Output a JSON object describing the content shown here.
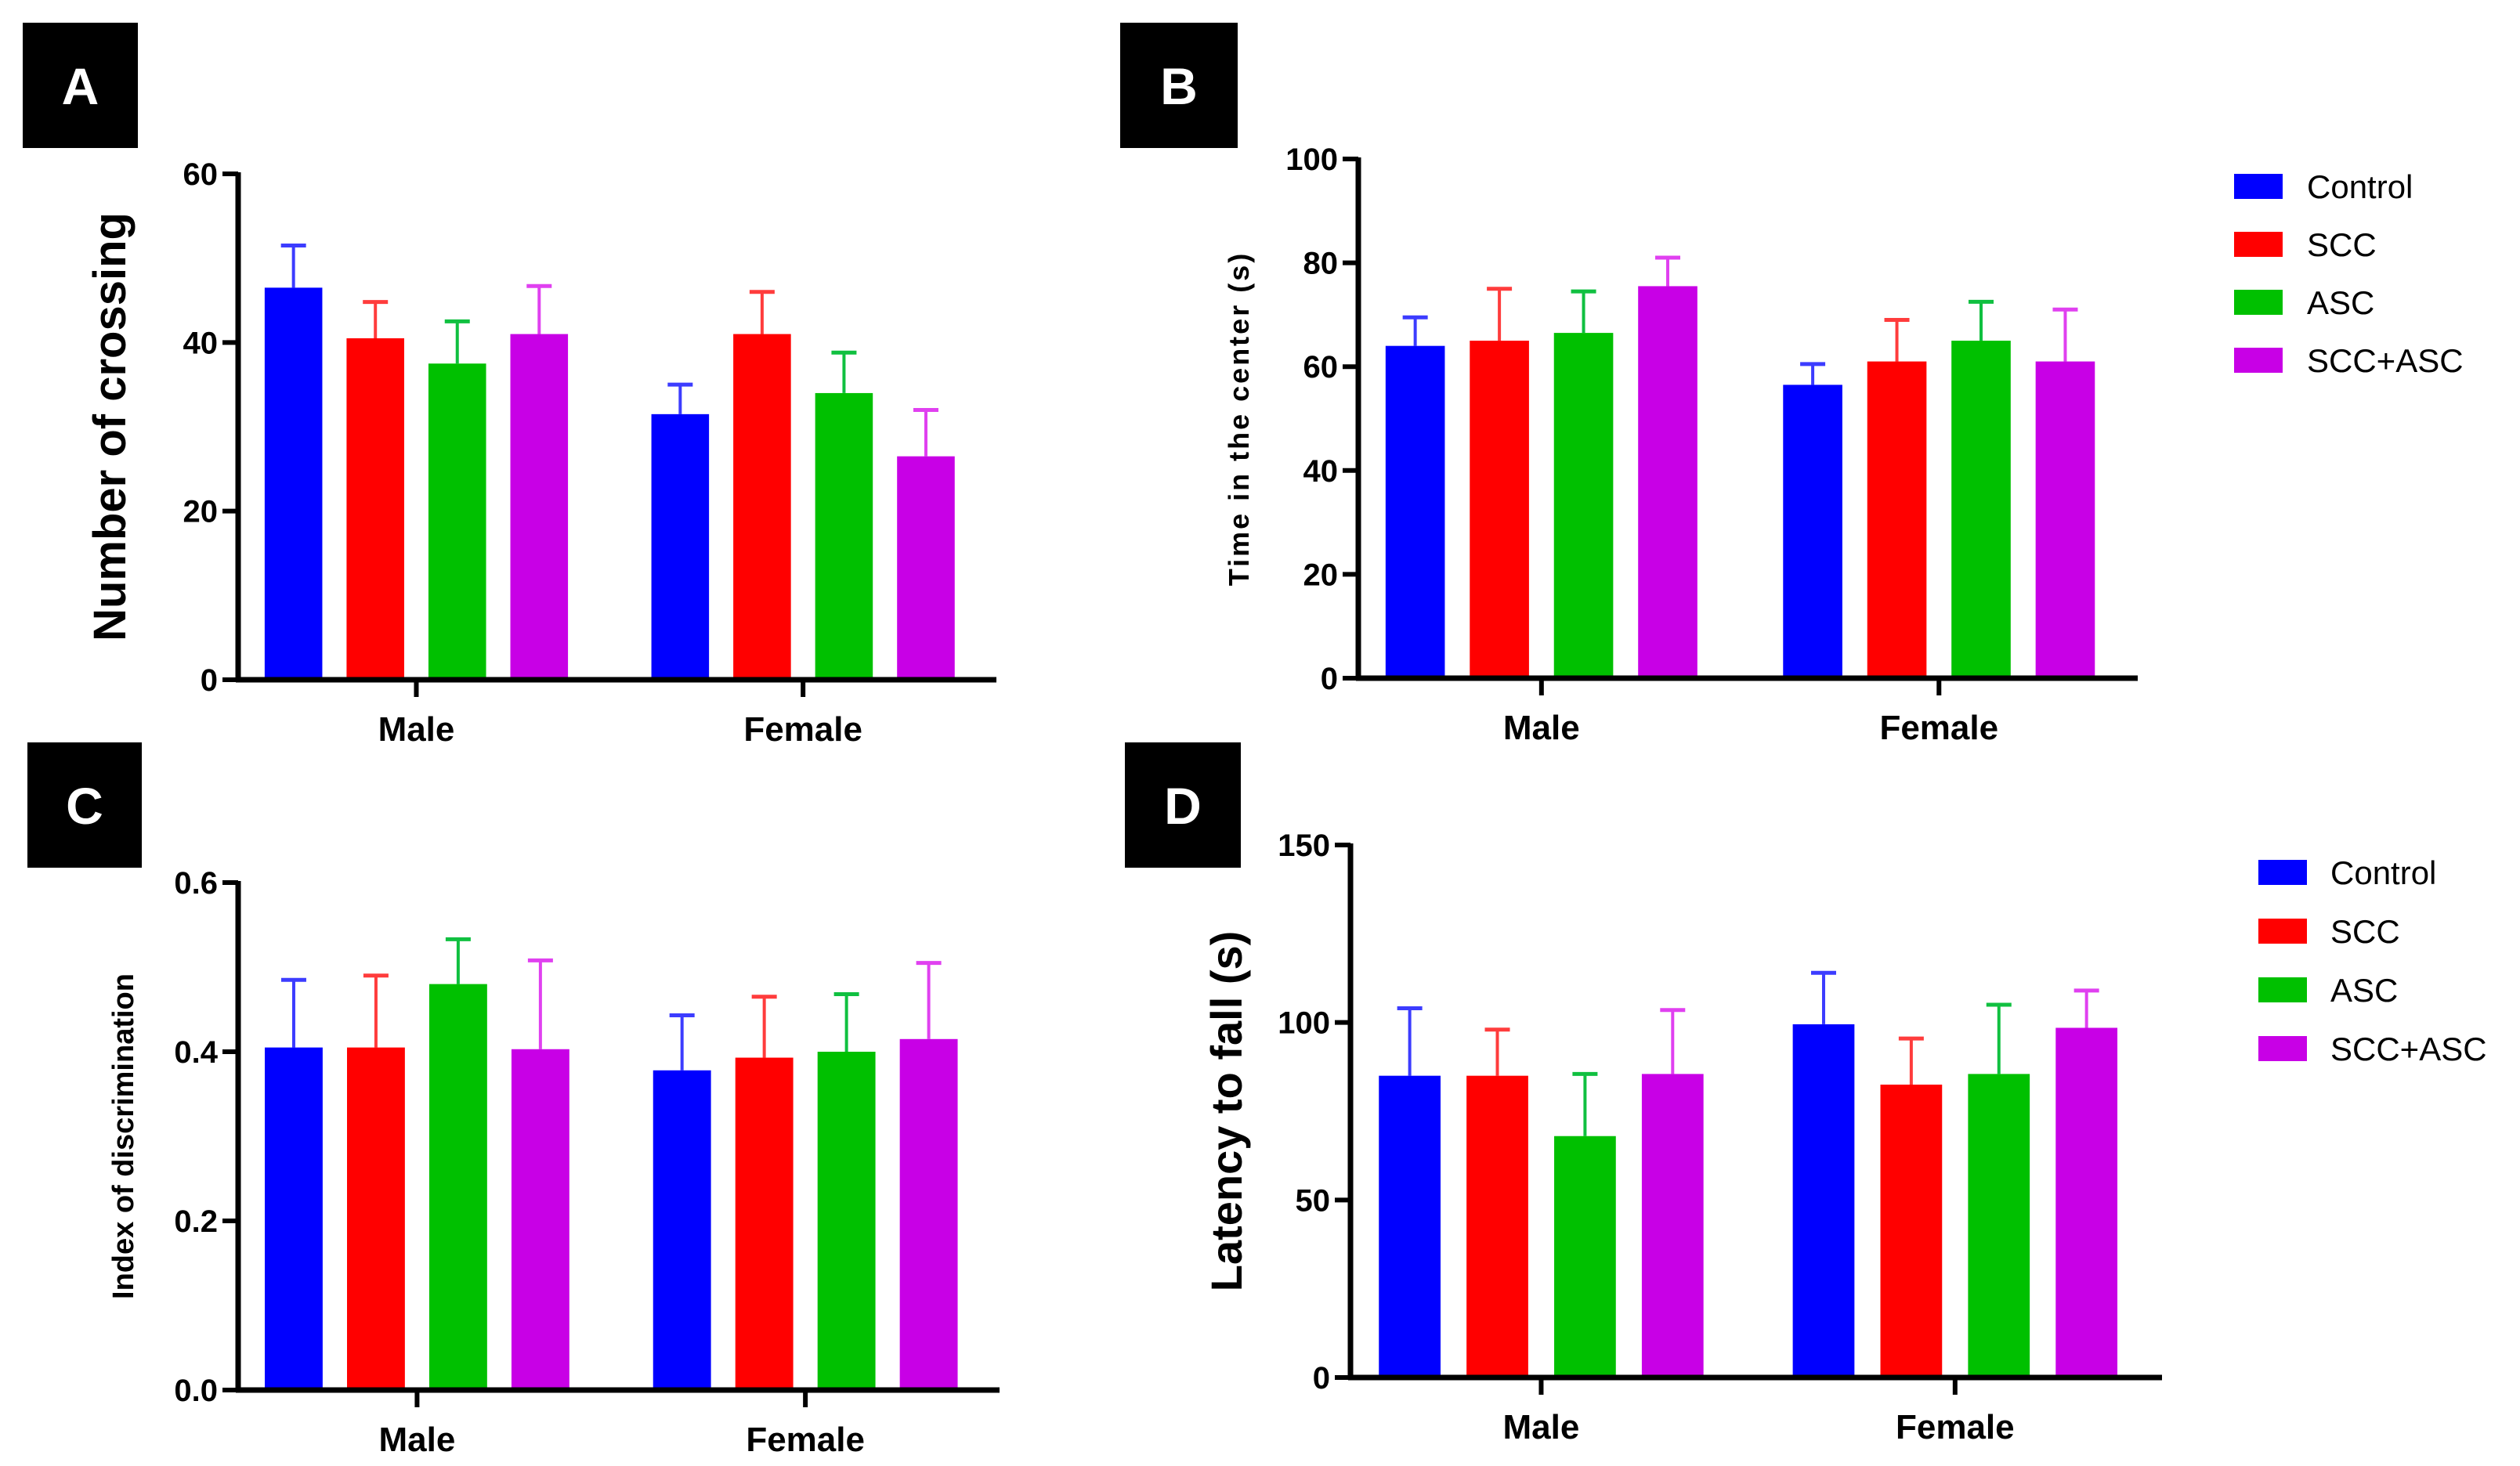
{
  "groups": [
    "Control",
    "SCC",
    "ASC",
    "SCC+ASC"
  ],
  "colors": {
    "Control": "#0000ff",
    "SCC": "#ff0000",
    "ASC": "#00c000",
    "SCC+ASC": "#c800e6"
  },
  "error_colors": {
    "Control": "#3c3cff",
    "SCC": "#ff3c3c",
    "ASC": "#10c040",
    "SCC+ASC": "#e040f0"
  },
  "chart_data": [
    {
      "panel": "A",
      "type": "bar",
      "categories": [
        "Male",
        "Female"
      ],
      "ylabel": "Number of crossing",
      "ylim": [
        0,
        60
      ],
      "yticks": [
        0,
        20,
        40,
        60
      ],
      "ytick_labels": [
        "0",
        "20",
        "40",
        "60"
      ],
      "legend": false,
      "series": [
        {
          "name": "Control",
          "values": [
            46.5,
            31.5
          ],
          "errors": [
            5.0,
            3.5
          ]
        },
        {
          "name": "SCC",
          "values": [
            40.5,
            41.0
          ],
          "errors": [
            4.3,
            5.0
          ]
        },
        {
          "name": "ASC",
          "values": [
            37.5,
            34.0
          ],
          "errors": [
            5.0,
            4.8
          ]
        },
        {
          "name": "SCC+ASC",
          "values": [
            41.0,
            26.5
          ],
          "errors": [
            5.7,
            5.5
          ]
        }
      ]
    },
    {
      "panel": "B",
      "type": "bar",
      "categories": [
        "Male",
        "Female"
      ],
      "ylabel": "Time in the center (s)",
      "ylim": [
        0,
        100
      ],
      "yticks": [
        0,
        20,
        40,
        60,
        80,
        100
      ],
      "ytick_labels": [
        "0",
        "20",
        "40",
        "60",
        "80",
        "100"
      ],
      "legend": true,
      "legend_position": "right",
      "series": [
        {
          "name": "Control",
          "values": [
            64.0,
            56.5
          ],
          "errors": [
            5.5,
            4.0
          ]
        },
        {
          "name": "SCC",
          "values": [
            65.0,
            61.0
          ],
          "errors": [
            10.0,
            8.0
          ]
        },
        {
          "name": "ASC",
          "values": [
            66.5,
            65.0
          ],
          "errors": [
            8.0,
            7.5
          ]
        },
        {
          "name": "SCC+ASC",
          "values": [
            75.5,
            61.0
          ],
          "errors": [
            5.5,
            10.0
          ]
        }
      ]
    },
    {
      "panel": "C",
      "type": "bar",
      "categories": [
        "Male",
        "Female"
      ],
      "ylabel": "Index of discrimination",
      "ylim": [
        0,
        0.6
      ],
      "yticks": [
        0,
        0.2,
        0.4,
        0.6
      ],
      "ytick_labels": [
        "0.0",
        "0.2",
        "0.4",
        "0.6"
      ],
      "legend": false,
      "series": [
        {
          "name": "Control",
          "values": [
            0.405,
            0.378
          ],
          "errors": [
            0.08,
            0.065
          ]
        },
        {
          "name": "SCC",
          "values": [
            0.405,
            0.393
          ],
          "errors": [
            0.085,
            0.072
          ]
        },
        {
          "name": "ASC",
          "values": [
            0.48,
            0.4
          ],
          "errors": [
            0.053,
            0.068
          ]
        },
        {
          "name": "SCC+ASC",
          "values": [
            0.403,
            0.415
          ],
          "errors": [
            0.105,
            0.09
          ]
        }
      ]
    },
    {
      "panel": "D",
      "type": "bar",
      "categories": [
        "Male",
        "Female"
      ],
      "ylabel": "Latency to fall (s)",
      "ylim": [
        0,
        150
      ],
      "yticks": [
        0,
        50,
        100,
        150
      ],
      "ytick_labels": [
        "0",
        "50",
        "100",
        "150"
      ],
      "legend": true,
      "legend_position": "right",
      "series": [
        {
          "name": "Control",
          "values": [
            85.0,
            99.5
          ],
          "errors": [
            19.0,
            14.5
          ]
        },
        {
          "name": "SCC",
          "values": [
            85.0,
            82.5
          ],
          "errors": [
            13.0,
            13.0
          ]
        },
        {
          "name": "ASC",
          "values": [
            68.0,
            85.5
          ],
          "errors": [
            17.5,
            19.5
          ]
        },
        {
          "name": "SCC+ASC",
          "values": [
            85.5,
            98.5
          ],
          "errors": [
            18.0,
            10.5
          ]
        }
      ]
    }
  ]
}
